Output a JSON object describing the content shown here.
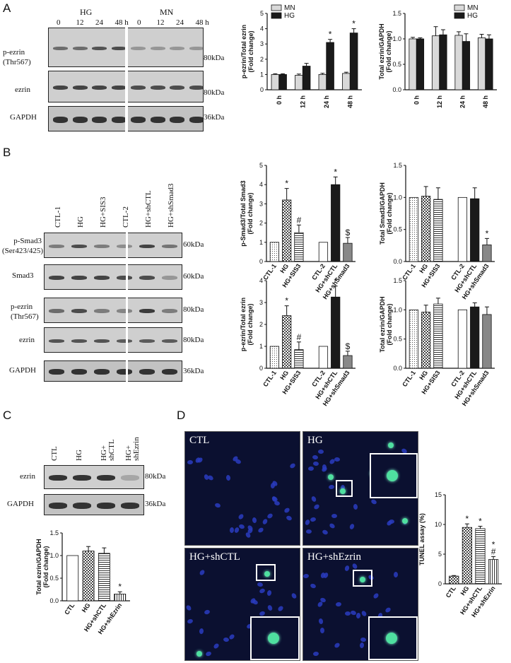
{
  "panels": {
    "A": {
      "letter": "A",
      "group_hg": "HG",
      "group_mn": "MN",
      "times": [
        "0",
        "12",
        "24",
        "48 h",
        "0",
        "12",
        "24",
        "48 h"
      ],
      "row_labels": [
        "p-ezrin\n(Thr567)",
        "ezrin",
        "GAPDH"
      ],
      "kda": [
        "80kDa",
        "80kDa",
        "36kDa"
      ]
    },
    "B": {
      "letter": "B",
      "lanes": [
        "CTL-1",
        "HG",
        "HG+SIS3",
        "CTL-2",
        "HG+shCTL",
        "HG+shSmad3"
      ],
      "row_labels": [
        "p-Smad3\n(Ser423/425)",
        "Smad3",
        "p-ezrin\n(Thr567)",
        "ezrin",
        "GAPDH"
      ],
      "kda": [
        "60kDa",
        "60kDa",
        "80kDa",
        "80kDa",
        "36kDa"
      ]
    },
    "C": {
      "letter": "C",
      "lanes": [
        "CTL",
        "HG",
        "HG+\nshCTL",
        "HG+\nshEzrin"
      ],
      "row_labels": [
        "ezrin",
        "GAPDH"
      ],
      "kda": [
        "80kDa",
        "36kDa"
      ]
    },
    "D": {
      "letter": "D",
      "images": [
        "CTL",
        "HG",
        "HG+shCTL",
        "HG+shEzrin"
      ]
    }
  },
  "chart_data": [
    {
      "id": "A1",
      "type": "bar",
      "ylabel": "p-ezrin/Total ezrin\n(Fold change)",
      "categories": [
        "0 h",
        "12 h",
        "24 h",
        "48 h"
      ],
      "series": [
        {
          "name": "MN",
          "values": [
            1.0,
            0.95,
            1.0,
            1.07
          ],
          "err": [
            0.05,
            0.08,
            0.08,
            0.08
          ],
          "color": "#d9d9d9"
        },
        {
          "name": "HG",
          "values": [
            1.0,
            1.55,
            3.1,
            3.72
          ],
          "err": [
            0.05,
            0.18,
            0.2,
            0.28
          ],
          "color": "#1a1a1a"
        }
      ],
      "ylim": [
        0,
        5
      ],
      "yticks": [
        0,
        1,
        2,
        3,
        4,
        5
      ],
      "annotations": [
        {
          "cat": 2,
          "series": 1,
          "text": "*"
        },
        {
          "cat": 3,
          "series": 1,
          "text": "*"
        }
      ],
      "legend": "top-left"
    },
    {
      "id": "A2",
      "type": "bar",
      "ylabel": "Total ezrin/GAPDH\n(Fold change)",
      "categories": [
        "0 h",
        "12 h",
        "24 h",
        "48 h"
      ],
      "series": [
        {
          "name": "MN",
          "values": [
            1.0,
            1.06,
            1.07,
            1.02
          ],
          "err": [
            0.03,
            0.18,
            0.07,
            0.07
          ],
          "color": "#d9d9d9"
        },
        {
          "name": "HG",
          "values": [
            1.0,
            1.08,
            0.95,
            1.0
          ],
          "err": [
            0.02,
            0.1,
            0.15,
            0.08
          ],
          "color": "#1a1a1a"
        }
      ],
      "ylim": [
        0,
        1.5
      ],
      "yticks": [
        0.0,
        0.5,
        1.0,
        1.5
      ],
      "legend": "top-right"
    },
    {
      "id": "B1",
      "type": "bar",
      "ylabel": "p-Smad3/Total Smad3\n(Fold change)",
      "categories": [
        "CTL-1",
        "HG",
        "HG+SIS3",
        "CTL-2",
        "HG+shCTL",
        "HG+shSmad3"
      ],
      "values": [
        1.0,
        3.2,
        1.5,
        1.0,
        4.0,
        0.95
      ],
      "err": [
        0.0,
        0.6,
        0.4,
        0.0,
        0.4,
        0.3
      ],
      "ylim": [
        0,
        5
      ],
      "yticks": [
        0,
        1,
        2,
        3,
        4,
        5
      ],
      "annotations": [
        "",
        "*",
        "#",
        "",
        "*",
        "$"
      ]
    },
    {
      "id": "B2",
      "type": "bar",
      "ylabel": "Total Smad3/GAPDH\n(Fold change)",
      "categories": [
        "CTL-1",
        "HG",
        "HG+SIS3",
        "CTL-2",
        "HG+shCTL",
        "HG+shSmad3"
      ],
      "values": [
        1.0,
        1.02,
        0.97,
        1.0,
        0.98,
        0.26
      ],
      "err": [
        0.0,
        0.15,
        0.18,
        0.0,
        0.17,
        0.1
      ],
      "ylim": [
        0,
        1.5
      ],
      "yticks": [
        0.0,
        0.5,
        1.0,
        1.5
      ],
      "annotations": [
        "",
        "",
        "",
        "",
        "",
        "*"
      ]
    },
    {
      "id": "B3",
      "type": "bar",
      "ylabel": "p-ezrin/Total ezrin\n(Fold change)",
      "categories": [
        "CTL-1",
        "HG",
        "HG+SIS3",
        "CTL-2",
        "HG+shCTL",
        "HG+shSmad3"
      ],
      "values": [
        1.0,
        2.4,
        0.85,
        1.0,
        3.25,
        0.58
      ],
      "err": [
        0.0,
        0.45,
        0.35,
        0.0,
        0.5,
        0.2
      ],
      "ylim": [
        0,
        4
      ],
      "yticks": [
        0,
        1,
        2,
        3,
        4
      ],
      "annotations": [
        "",
        "*",
        "#",
        "",
        "*",
        "$"
      ]
    },
    {
      "id": "B4",
      "type": "bar",
      "ylabel": "Total ezrin/GAPDH\n(Fold change)",
      "categories": [
        "CTL-1",
        "HG",
        "HG+SIS3",
        "CTL-2",
        "HG+shCTL",
        "HG+shSmad3"
      ],
      "values": [
        1.0,
        0.96,
        1.1,
        1.0,
        1.05,
        0.92
      ],
      "err": [
        0.0,
        0.12,
        0.1,
        0.0,
        0.07,
        0.13
      ],
      "ylim": [
        0,
        1.5
      ],
      "yticks": [
        0.0,
        0.5,
        1.0,
        1.5
      ],
      "annotations": [
        "",
        "",
        "",
        "",
        "",
        ""
      ]
    },
    {
      "id": "C1",
      "type": "bar",
      "ylabel": "Total ezrin/GAPDH\n(Fold change)",
      "categories": [
        "CTL",
        "HG",
        "HG+shCTL",
        "HG+shEzrin"
      ],
      "values": [
        1.0,
        1.1,
        1.05,
        0.15
      ],
      "err": [
        0.0,
        0.1,
        0.12,
        0.05
      ],
      "ylim": [
        0,
        1.5
      ],
      "yticks": [
        0.0,
        0.5,
        1.0,
        1.5
      ],
      "annotations": [
        "",
        "",
        "",
        "*"
      ]
    },
    {
      "id": "D1",
      "type": "bar",
      "ylabel": "TUNEL assay (%)",
      "categories": [
        "CTL",
        "HG",
        "HG+shCTL",
        "HG+shEzrin"
      ],
      "values": [
        1.3,
        9.5,
        9.3,
        4.1
      ],
      "err": [
        0.1,
        0.6,
        0.4,
        0.5
      ],
      "ylim": [
        0,
        15
      ],
      "yticks": [
        0,
        5,
        10,
        15
      ],
      "annotations": [
        "",
        "*",
        "*",
        "*\n#"
      ]
    }
  ]
}
